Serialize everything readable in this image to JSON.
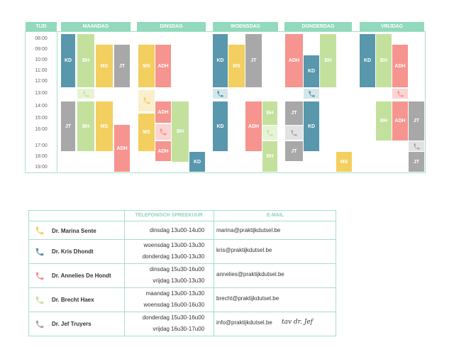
{
  "schedule": {
    "tijd_label": "TIJD",
    "days": [
      "MAANDAG",
      "DINSDAG",
      "WOENSDAG",
      "DONDERDAG",
      "VRIJDAG"
    ],
    "times": [
      "08:00",
      "09:00",
      "10:00",
      "11:00",
      "12:00",
      "13:00",
      "14:00",
      "15:00",
      "16:00",
      "17:00",
      "18:00",
      "19:00"
    ],
    "codes": {
      "kd": "KD",
      "bh": "BH",
      "ms": "MS",
      "jt": "JT",
      "adh": "ADH"
    }
  },
  "colors": {
    "header": "#92d9bd",
    "KD": "#5897ac",
    "BH": "#c3e19d",
    "MS": "#f2cf5f",
    "JT": "#a8a8a8",
    "ADH": "#f6948f"
  },
  "contact": {
    "col_phone": "TELEFONISCH SPREEKUUR",
    "col_email": "E-MAIL",
    "doctors": [
      {
        "name": "Dr. Marina Sente",
        "icon": "phone-icon-yellow",
        "slots": [
          [
            "dinsdag",
            "13u00-14u00"
          ]
        ],
        "email": "marina@praktijkdutsel.be"
      },
      {
        "name": "Dr. Kris Dhondt",
        "icon": "phone-icon-blue",
        "slots": [
          [
            "woensdag",
            "13u00-13u30"
          ],
          [
            "donderdag",
            "13u00-13u30"
          ]
        ],
        "email": "kris@praktijkdutsel.be"
      },
      {
        "name": "Dr. Annelies De Hondt",
        "icon": "phone-icon-red",
        "slots": [
          [
            "dinsdag",
            "15u30-16u00"
          ],
          [
            "vrijdag",
            "13u00-13u30"
          ]
        ],
        "email": "annelies@praktijkdutsel.be"
      },
      {
        "name": "Dr. Brecht Haex",
        "icon": "phone-icon-green",
        "slots": [
          [
            "maandag",
            "13u00-13u30"
          ],
          [
            "woensdag",
            "16u00-16u30"
          ]
        ],
        "email": "brecht@praktijkdutsel.be"
      },
      {
        "name": "Dr. Jef Truyers",
        "icon": "phone-icon-grey",
        "slots": [
          [
            "donderdag",
            "15u30-16u00"
          ],
          [
            "vrijdag",
            "16u30-17u00"
          ]
        ],
        "email": "info@praktijkdutsel.be",
        "note": "tav dr. Jef"
      }
    ]
  }
}
